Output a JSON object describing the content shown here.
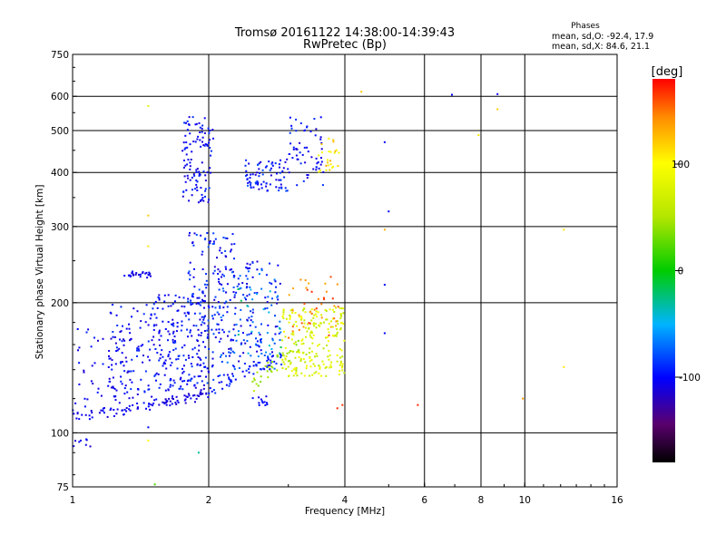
{
  "header": {
    "title_line1": "Tromsø 20161122 14:38:00-14:39:43",
    "title_line2": "RwPretec (Bp)"
  },
  "phase_stats": {
    "heading": "Phases",
    "line_o": "mean, sd,O: -92.4, 17.9",
    "line_x": "mean, sd,X: 84.6, 21.1"
  },
  "colorbar": {
    "unit_label": "[deg]",
    "range": [
      -180,
      180
    ],
    "ticks": [
      {
        "value": 100,
        "label": "100"
      },
      {
        "value": 0,
        "label": "0"
      },
      {
        "value": -100,
        "label": "-100"
      }
    ]
  },
  "chart_data": {
    "type": "scatter",
    "xlabel": "Frequency [MHz]",
    "ylabel": "Stationary phase Virtual Height [km]",
    "x_scale": "log",
    "y_scale": "log",
    "xlim": [
      1,
      16
    ],
    "ylim": [
      75,
      750
    ],
    "grid": true,
    "x_ticks": [
      {
        "value": 1,
        "label": "1"
      },
      {
        "value": 2,
        "label": "2"
      },
      {
        "value": 4,
        "label": "4"
      },
      {
        "value": 6,
        "label": "6"
      },
      {
        "value": 8,
        "label": "8"
      },
      {
        "value": 10,
        "label": "10"
      },
      {
        "value": 16,
        "label": "16"
      }
    ],
    "y_ticks": [
      {
        "value": 75,
        "label": "75"
      },
      {
        "value": 100,
        "label": "100"
      },
      {
        "value": 200,
        "label": "200"
      },
      {
        "value": 300,
        "label": "300"
      },
      {
        "value": 400,
        "label": "400"
      },
      {
        "value": 500,
        "label": "500"
      },
      {
        "value": 600,
        "label": "600"
      },
      {
        "value": 750,
        "label": "750"
      }
    ],
    "x_grid_values": [
      2,
      4,
      6,
      8,
      10
    ],
    "y_grid_values": [
      100,
      200,
      300,
      400,
      500,
      600
    ],
    "color_encodes": "phase [deg]",
    "traces": [
      {
        "f_start": 1.0,
        "f_end": 1.65,
        "h_start": 108,
        "h_end": 118,
        "jitter": 3,
        "phase": -105,
        "count": 60
      },
      {
        "f_start": 1.6,
        "f_end": 2.0,
        "h_start": 118,
        "h_end": 122,
        "jitter": 3,
        "phase": -110,
        "count": 35
      },
      {
        "f_start": 2.0,
        "f_end": 2.9,
        "h_start": 125,
        "h_end": 150,
        "jitter": 4,
        "phase": -95,
        "count": 45
      },
      {
        "f_start": 2.5,
        "f_end": 3.2,
        "h_start": 130,
        "h_end": 160,
        "jitter": 6,
        "phase": 45,
        "count": 30
      }
    ],
    "clusters": [
      {
        "f_min": 1.0,
        "f_max": 1.35,
        "h_min": 110,
        "h_max": 175,
        "phase": -105,
        "spread": 15,
        "count": 60
      },
      {
        "f_min": 1.2,
        "f_max": 1.8,
        "h_min": 120,
        "h_max": 200,
        "phase": -100,
        "spread": 15,
        "count": 140
      },
      {
        "f_min": 1.5,
        "f_max": 2.0,
        "h_min": 125,
        "h_max": 210,
        "phase": -100,
        "spread": 15,
        "count": 140
      },
      {
        "f_min": 1.8,
        "f_max": 2.3,
        "h_min": 130,
        "h_max": 290,
        "phase": -95,
        "spread": 20,
        "count": 170
      },
      {
        "f_min": 2.1,
        "f_max": 2.9,
        "h_min": 140,
        "h_max": 250,
        "phase": -90,
        "spread": 25,
        "count": 150
      },
      {
        "f_min": 2.3,
        "f_max": 2.9,
        "h_min": 150,
        "h_max": 215,
        "phase": -50,
        "spread": 35,
        "count": 40
      },
      {
        "f_min": 2.9,
        "f_max": 4.0,
        "h_min": 135,
        "h_max": 195,
        "phase": 75,
        "spread": 25,
        "count": 220
      },
      {
        "f_min": 3.0,
        "f_max": 3.9,
        "h_min": 165,
        "h_max": 230,
        "phase": 150,
        "spread": 20,
        "count": 40
      },
      {
        "f_min": 1.75,
        "f_max": 2.05,
        "h_min": 340,
        "h_max": 540,
        "phase": -100,
        "spread": 15,
        "count": 110
      },
      {
        "f_min": 2.4,
        "f_max": 3.0,
        "h_min": 360,
        "h_max": 430,
        "phase": -95,
        "spread": 20,
        "count": 80
      },
      {
        "f_min": 3.0,
        "f_max": 3.6,
        "h_min": 370,
        "h_max": 540,
        "phase": -100,
        "spread": 15,
        "count": 60
      },
      {
        "f_min": 3.5,
        "f_max": 3.9,
        "h_min": 400,
        "h_max": 480,
        "phase": 110,
        "spread": 25,
        "count": 25
      },
      {
        "f_min": 1.3,
        "f_max": 1.5,
        "h_min": 228,
        "h_max": 236,
        "phase": -105,
        "spread": 10,
        "count": 25
      },
      {
        "f_min": 2.5,
        "f_max": 2.7,
        "h_min": 115,
        "h_max": 122,
        "phase": -100,
        "spread": 10,
        "count": 12
      },
      {
        "f_min": 1.0,
        "f_max": 1.1,
        "h_min": 92,
        "h_max": 97,
        "phase": -105,
        "spread": 10,
        "count": 8
      }
    ],
    "isolated_points": [
      {
        "f": 1.47,
        "h": 570,
        "phase": 80
      },
      {
        "f": 1.47,
        "h": 318,
        "phase": 120
      },
      {
        "f": 1.47,
        "h": 270,
        "phase": 110
      },
      {
        "f": 1.47,
        "h": 96,
        "phase": 100
      },
      {
        "f": 1.47,
        "h": 103,
        "phase": -100
      },
      {
        "f": 1.52,
        "h": 76,
        "phase": 20
      },
      {
        "f": 1.9,
        "h": 90,
        "phase": -30
      },
      {
        "f": 4.35,
        "h": 615,
        "phase": 120
      },
      {
        "f": 4.9,
        "h": 470,
        "phase": -100
      },
      {
        "f": 5.0,
        "h": 325,
        "phase": -100
      },
      {
        "f": 4.9,
        "h": 295,
        "phase": 130
      },
      {
        "f": 4.9,
        "h": 220,
        "phase": -100
      },
      {
        "f": 4.9,
        "h": 170,
        "phase": -100
      },
      {
        "f": 5.8,
        "h": 116,
        "phase": 170
      },
      {
        "f": 6.9,
        "h": 605,
        "phase": -100
      },
      {
        "f": 7.9,
        "h": 488,
        "phase": 110
      },
      {
        "f": 8.7,
        "h": 607,
        "phase": -105
      },
      {
        "f": 8.7,
        "h": 560,
        "phase": 120
      },
      {
        "f": 9.9,
        "h": 120,
        "phase": 140
      },
      {
        "f": 12.2,
        "h": 295,
        "phase": 110
      },
      {
        "f": 12.2,
        "h": 142,
        "phase": 110
      },
      {
        "f": 3.85,
        "h": 114,
        "phase": 170
      },
      {
        "f": 3.95,
        "h": 116,
        "phase": 165
      }
    ]
  }
}
